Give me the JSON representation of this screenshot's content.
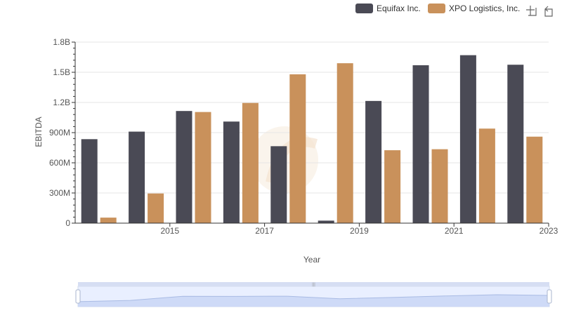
{
  "chart_data": {
    "type": "bar",
    "xlabel": "Year",
    "ylabel": "EBITDA",
    "categories": [
      "2014",
      "2015",
      "2016",
      "2017",
      "2018",
      "2019",
      "2020",
      "2021",
      "2022",
      "2023"
    ],
    "x_tick_labels": [
      "2015",
      "2017",
      "2019",
      "2021",
      "2023"
    ],
    "y_ticks": [
      0,
      300000000,
      600000000,
      900000000,
      1200000000,
      1500000000,
      1800000000
    ],
    "y_tick_labels": [
      "0",
      "300M",
      "600M",
      "900M",
      "1.2B",
      "1.5B",
      "1.8B"
    ],
    "ylim": [
      0,
      1800000000
    ],
    "grid": true,
    "legend_position": "top-right",
    "series": [
      {
        "name": "Equifax Inc.",
        "color": "#4a4a55",
        "values": [
          835000000,
          910000000,
          1115000000,
          1010000000,
          765000000,
          25000000,
          1215000000,
          1570000000,
          1670000000,
          1575000000
        ]
      },
      {
        "name": "XPO Logistics, Inc.",
        "color": "#c9915b",
        "values": [
          55000000,
          295000000,
          1105000000,
          1195000000,
          1480000000,
          1590000000,
          725000000,
          735000000,
          940000000,
          860000000
        ]
      }
    ]
  },
  "toolbox": {
    "zoom_icon": "data-zoom-icon",
    "restore_icon": "restore-icon"
  }
}
